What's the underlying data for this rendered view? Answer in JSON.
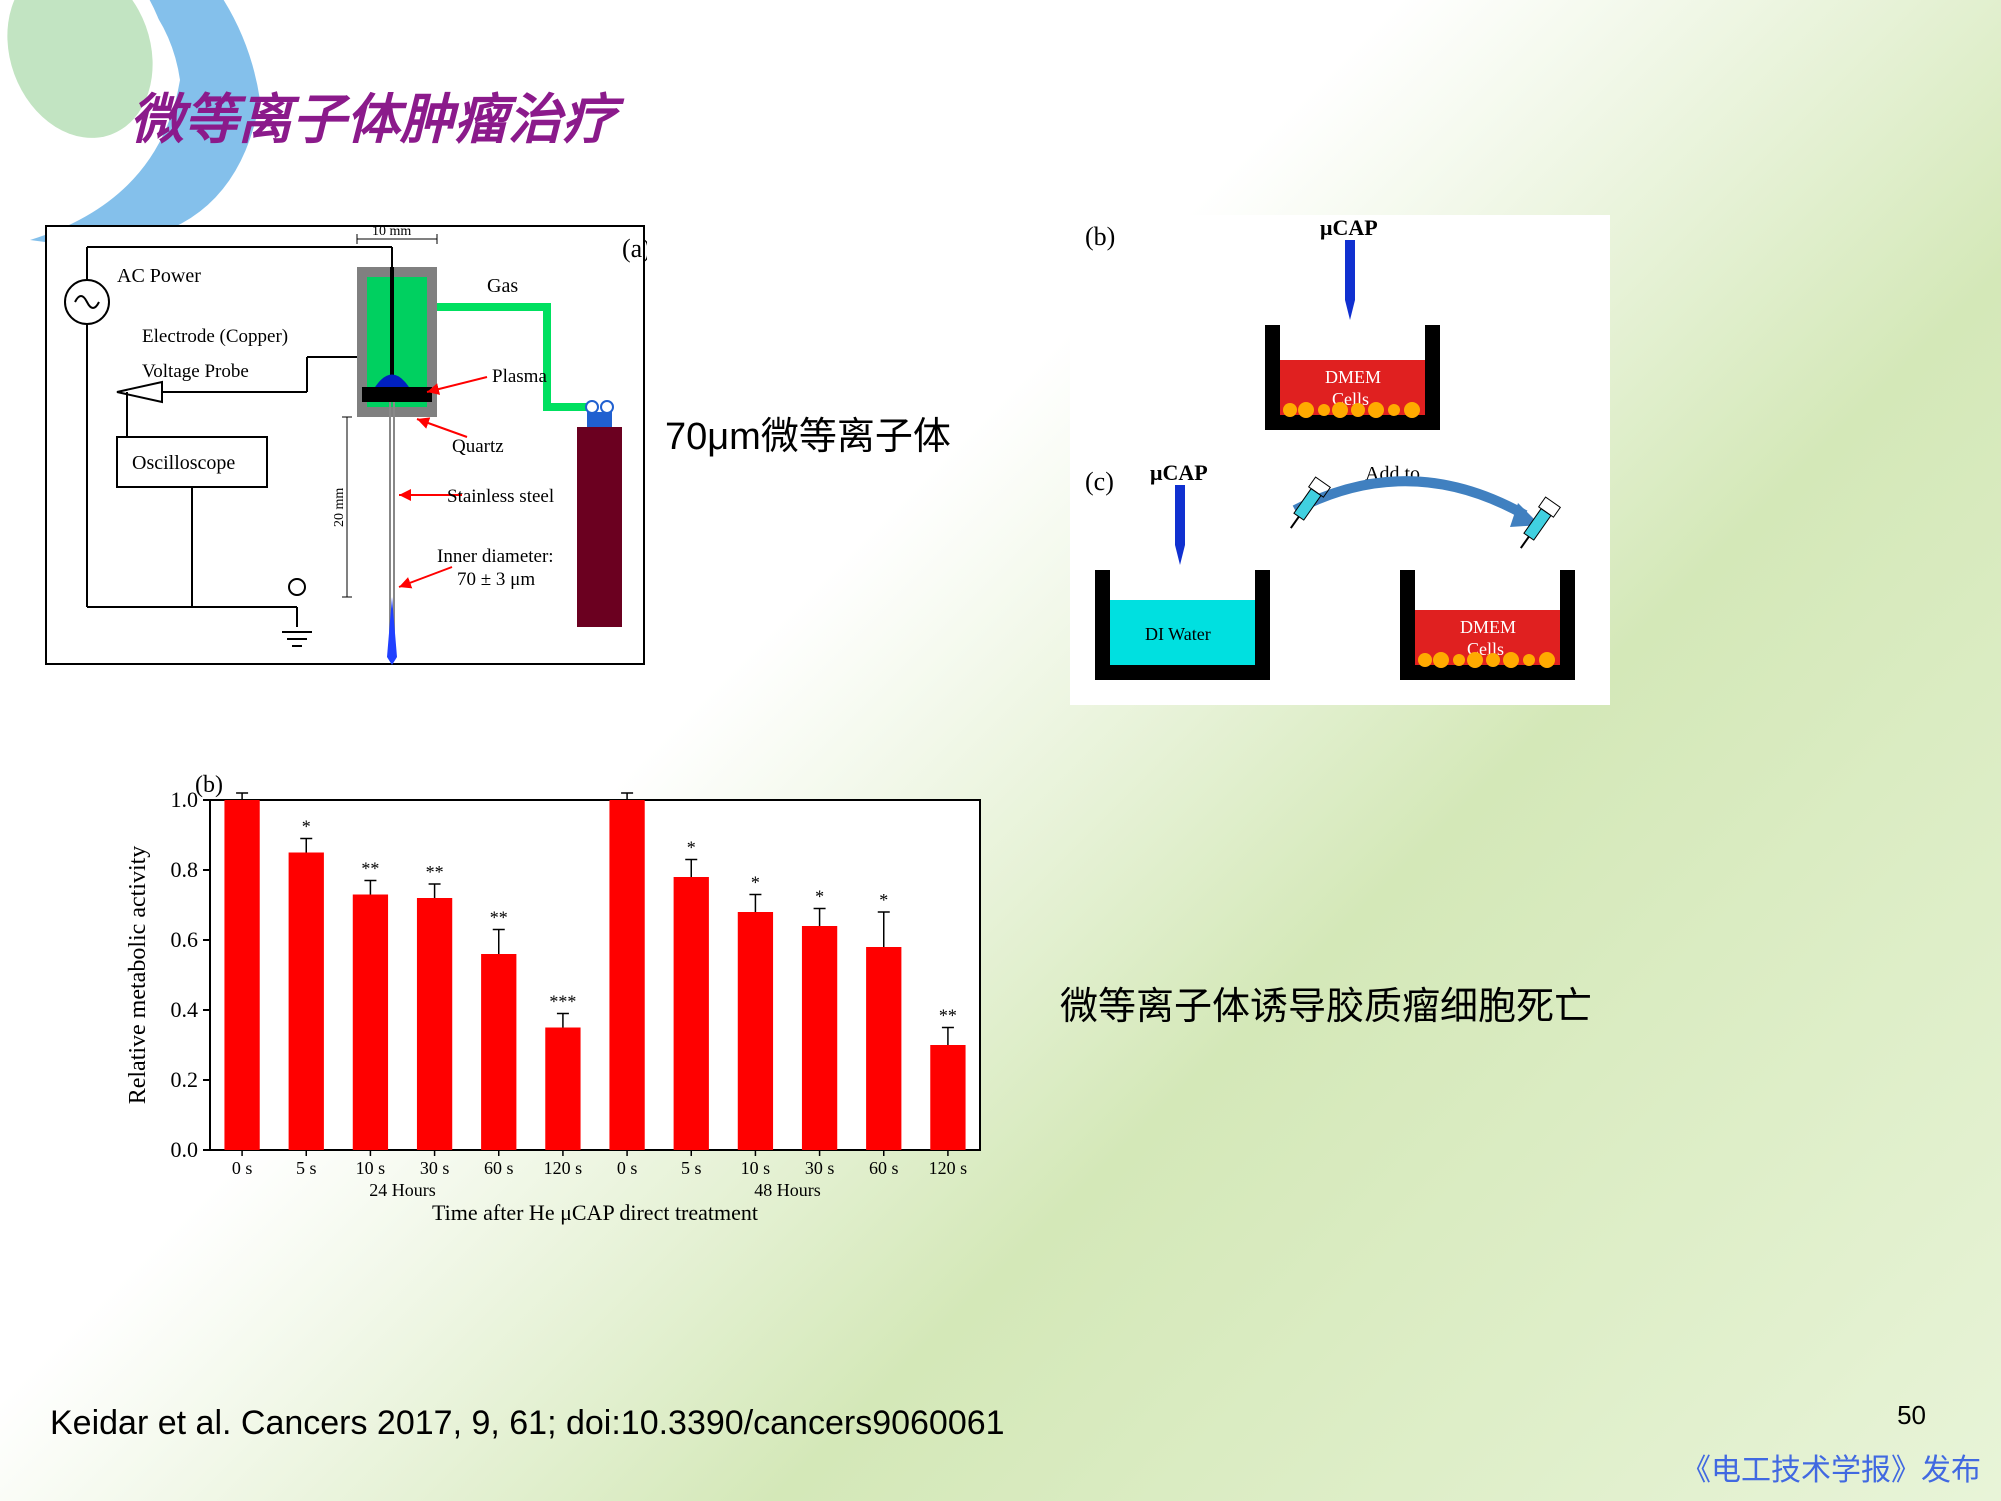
{
  "title": "微等离子体肿瘤治疗",
  "label_70um": "70μm微等离子体",
  "chart_caption": "微等离子体诱导胶质瘤细胞死亡",
  "citation": "Keidar et al. Cancers 2017, 9, 61; doi:10.3390/cancers9060061",
  "page_number": "50",
  "publisher": "《电工技术学报》发布",
  "swoosh_colors": {
    "outer": "#6eb5e8",
    "inner": "#a8d8a8"
  },
  "panel_a": {
    "label": "(a)",
    "labels": {
      "ac_power": "AC Power",
      "electrode": "Electrode (Copper)",
      "voltage_probe": "Voltage Probe",
      "oscilloscope": "Oscilloscope",
      "gas": "Gas",
      "plasma": "Plasma",
      "quartz": "Quartz",
      "stainless": "Stainless steel",
      "inner_diameter": "Inner diameter:",
      "inner_diameter_val": "70 ± 3 μm",
      "width": "10 mm",
      "height": "20 mm"
    },
    "colors": {
      "chamber_fill": "#00d060",
      "chamber_wall": "#808080",
      "electrode": "#0020c0",
      "gas_line": "#00e060",
      "gas_tank": "#6b0020",
      "arrow": "#ff0000",
      "plasma_jet": "#2040ff"
    }
  },
  "panel_bc": {
    "label_b": "(b)",
    "label_c": "(c)",
    "ucap": "μCAP",
    "dmem": "DMEM",
    "cells": "Cells",
    "di_water": "DI Water",
    "add_to": "Add to",
    "colors": {
      "dmem_fill": "#e02020",
      "water_fill": "#00e0e0",
      "container": "#000000",
      "electrode": "#1030d0",
      "cells": "#ffaa00",
      "syringe": "#40d0e0",
      "arrow": "#4080c0"
    }
  },
  "bar_chart": {
    "type": "bar",
    "panel_label": "(b)",
    "ylabel": "Relative metabolic activity",
    "xlabel": "Time after He μCAP direct treatment",
    "ylim": [
      0.0,
      1.0
    ],
    "yticks": [
      0.0,
      0.2,
      0.4,
      0.6,
      0.8,
      1.0
    ],
    "groups": [
      "24 Hours",
      "48 Hours"
    ],
    "categories": [
      "0 s",
      "5 s",
      "10 s",
      "30 s",
      "60 s",
      "120 s"
    ],
    "series_24h": {
      "values": [
        1.0,
        0.85,
        0.73,
        0.72,
        0.56,
        0.35
      ],
      "errors": [
        0.02,
        0.04,
        0.04,
        0.04,
        0.07,
        0.04
      ],
      "sig": [
        "",
        "*",
        "**",
        "**",
        "**",
        "***"
      ]
    },
    "series_48h": {
      "values": [
        1.0,
        0.78,
        0.68,
        0.64,
        0.58,
        0.3
      ],
      "errors": [
        0.02,
        0.05,
        0.05,
        0.05,
        0.1,
        0.05
      ],
      "sig": [
        "",
        "*",
        "*",
        "*",
        "*",
        "**"
      ]
    },
    "bar_color": "#ff0000",
    "bar_width": 0.55,
    "axis_color": "#000000",
    "font_size_axis": 20,
    "font_size_tick": 18
  }
}
